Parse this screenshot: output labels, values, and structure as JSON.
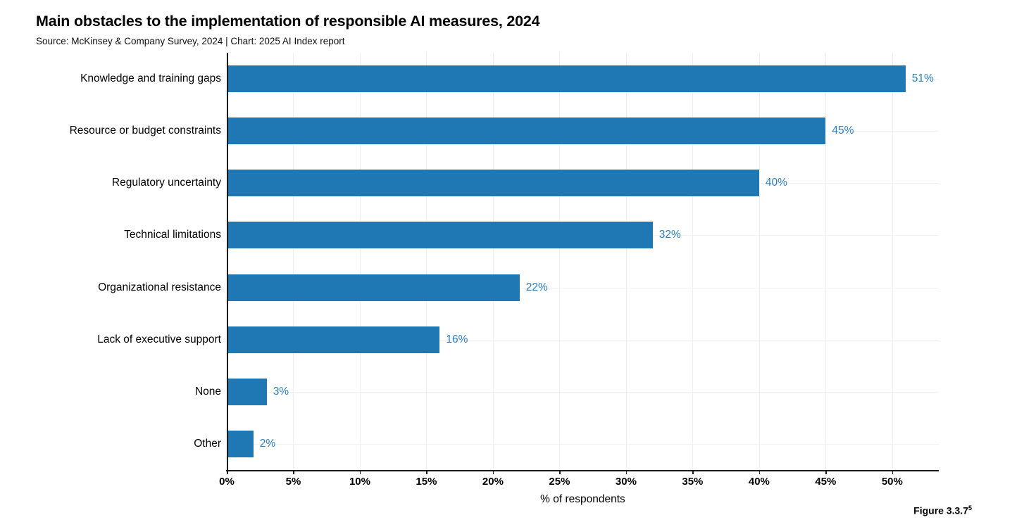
{
  "header": {
    "title": "Main obstacles to the implementation of responsible AI measures, 2024",
    "subtitle": "Source: McKinsey & Company Survey, 2024 | Chart: 2025 AI Index report"
  },
  "figure": {
    "label": "Figure 3.3.7",
    "superscript": "5"
  },
  "colors": {
    "bar": "#1f77b4",
    "value_label": "#2e7ebb",
    "axis": "#1a1a1a",
    "grid_vertical": "#f0f0f0",
    "grid_horizontal": "#f2f2f2"
  },
  "chart_data": {
    "type": "bar",
    "orientation": "horizontal",
    "title": "Main obstacles to the implementation of responsible AI measures, 2024",
    "subtitle": "Source: McKinsey & Company Survey, 2024 | Chart: 2025 AI Index report",
    "categories": [
      "Knowledge and training gaps",
      "Resource or budget constraints",
      "Regulatory uncertainty",
      "Technical limitations",
      "Organizational resistance",
      "Lack of executive support",
      "None",
      "Other"
    ],
    "values": [
      51,
      45,
      40,
      32,
      22,
      16,
      3,
      2
    ],
    "value_labels": [
      "51%",
      "45%",
      "40%",
      "32%",
      "22%",
      "16%",
      "3%",
      "2%"
    ],
    "xlabel": "% of respondents",
    "ylabel": "",
    "x_tick_values": [
      0,
      5,
      10,
      15,
      20,
      25,
      30,
      35,
      40,
      45,
      50
    ],
    "x_tick_labels": [
      "0%",
      "5%",
      "10%",
      "15%",
      "20%",
      "25%",
      "30%",
      "35%",
      "40%",
      "45%",
      "50%"
    ],
    "xlim": [
      0,
      53.5
    ],
    "grid": true,
    "legend": "none"
  }
}
